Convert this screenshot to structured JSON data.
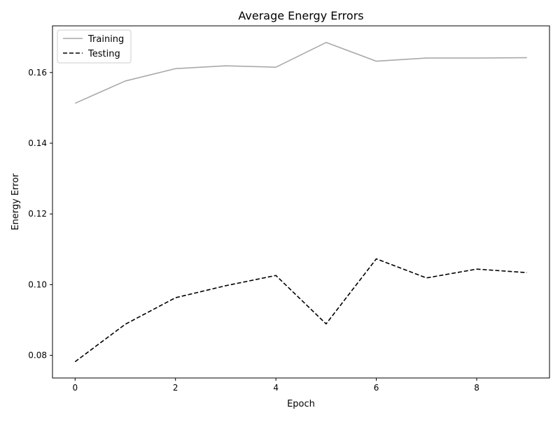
{
  "chart_data": {
    "type": "line",
    "title": "Average Energy Errors",
    "xlabel": "Epoch",
    "ylabel": "Energy Error",
    "x": [
      0,
      1,
      2,
      3,
      4,
      5,
      6,
      7,
      8,
      9
    ],
    "xlim": [
      -0.45,
      9.45
    ],
    "ylim": [
      0.0736,
      0.1732
    ],
    "xticks": [
      0,
      2,
      4,
      6,
      8
    ],
    "xtick_labels": [
      "0",
      "2",
      "4",
      "6",
      "8"
    ],
    "yticks": [
      0.08,
      0.1,
      0.12,
      0.14,
      0.16
    ],
    "ytick_labels": [
      "0.08",
      "0.10",
      "0.12",
      "0.14",
      "0.16"
    ],
    "grid": false,
    "legend_position": "top-left",
    "series": [
      {
        "name": "Training",
        "color": "#a9a9a9",
        "style": "solid",
        "values": [
          0.1513,
          0.1576,
          0.1611,
          0.1619,
          0.1615,
          0.1685,
          0.1632,
          0.1641,
          0.1641,
          0.1642
        ]
      },
      {
        "name": "Testing",
        "color": "#000000",
        "style": "dashed",
        "values": [
          0.0782,
          0.0888,
          0.0963,
          0.0997,
          0.1026,
          0.0889,
          0.1073,
          0.1019,
          0.1044,
          0.1034
        ]
      }
    ]
  }
}
